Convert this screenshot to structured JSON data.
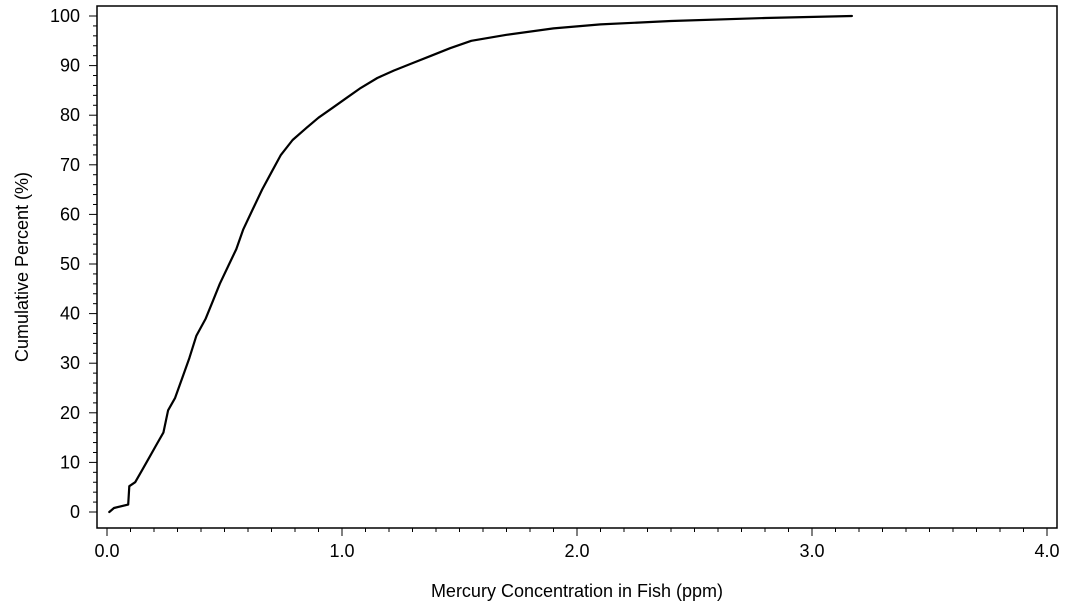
{
  "chart_data": {
    "type": "line",
    "xlabel": "Mercury Concentration in Fish (ppm)",
    "ylabel": "Cumulative Percent (%)",
    "xlim": [
      0.0,
      4.0
    ],
    "ylim": [
      0,
      100
    ],
    "x_ticks": [
      "0.0",
      "1.0",
      "2.0",
      "3.0",
      "4.0"
    ],
    "y_ticks": [
      "0",
      "10",
      "20",
      "30",
      "40",
      "50",
      "60",
      "70",
      "80",
      "90",
      "100"
    ],
    "grid": false,
    "series": [
      {
        "color": "#000000",
        "points": [
          [
            0.01,
            0
          ],
          [
            0.03,
            0.8
          ],
          [
            0.09,
            1.5
          ],
          [
            0.095,
            5.2
          ],
          [
            0.12,
            6.0
          ],
          [
            0.15,
            8.5
          ],
          [
            0.18,
            11.0
          ],
          [
            0.21,
            13.5
          ],
          [
            0.24,
            16.0
          ],
          [
            0.26,
            20.5
          ],
          [
            0.29,
            23.0
          ],
          [
            0.32,
            27.0
          ],
          [
            0.35,
            31.0
          ],
          [
            0.38,
            35.5
          ],
          [
            0.42,
            39.0
          ],
          [
            0.45,
            42.5
          ],
          [
            0.48,
            46.0
          ],
          [
            0.52,
            50.0
          ],
          [
            0.55,
            53.0
          ],
          [
            0.58,
            57.0
          ],
          [
            0.62,
            61.0
          ],
          [
            0.66,
            65.0
          ],
          [
            0.7,
            68.5
          ],
          [
            0.74,
            72.0
          ],
          [
            0.79,
            75.0
          ],
          [
            0.85,
            77.5
          ],
          [
            0.9,
            79.5
          ],
          [
            0.96,
            81.5
          ],
          [
            1.02,
            83.5
          ],
          [
            1.08,
            85.5
          ],
          [
            1.15,
            87.5
          ],
          [
            1.22,
            89.0
          ],
          [
            1.3,
            90.5
          ],
          [
            1.38,
            92.0
          ],
          [
            1.46,
            93.5
          ],
          [
            1.55,
            95.0
          ],
          [
            1.7,
            96.2
          ],
          [
            1.9,
            97.5
          ],
          [
            2.1,
            98.3
          ],
          [
            2.4,
            99.0
          ],
          [
            2.8,
            99.6
          ],
          [
            3.17,
            100.0
          ]
        ]
      }
    ]
  }
}
